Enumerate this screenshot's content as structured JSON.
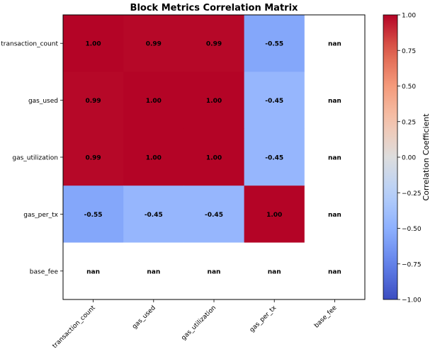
{
  "chart_data": {
    "type": "heatmap",
    "title": "Block Metrics Correlation Matrix",
    "rows": [
      "transaction_count",
      "gas_used",
      "gas_utilization",
      "gas_per_tx",
      "base_fee"
    ],
    "columns": [
      "transaction_count",
      "gas_used",
      "gas_utilization",
      "gas_per_tx",
      "base_fee"
    ],
    "values": [
      [
        1.0,
        0.99,
        0.99,
        -0.55,
        null
      ],
      [
        0.99,
        1.0,
        1.0,
        -0.45,
        null
      ],
      [
        0.99,
        1.0,
        1.0,
        -0.45,
        null
      ],
      [
        -0.55,
        -0.45,
        -0.45,
        1.0,
        null
      ],
      [
        null,
        null,
        null,
        null,
        null
      ]
    ],
    "cell_labels": [
      [
        "1.00",
        "0.99",
        "0.99",
        "-0.55",
        "nan"
      ],
      [
        "0.99",
        "1.00",
        "1.00",
        "-0.45",
        "nan"
      ],
      [
        "0.99",
        "1.00",
        "1.00",
        "-0.45",
        "nan"
      ],
      [
        "-0.55",
        "-0.45",
        "-0.45",
        "1.00",
        "nan"
      ],
      [
        "nan",
        "nan",
        "nan",
        "nan",
        "nan"
      ]
    ],
    "colormap": "coolwarm",
    "nan_color": "#ffffff",
    "vmin": -1,
    "vmax": 1,
    "colorbar": {
      "label": "Correlation Coefficient",
      "ticks": [
        1.0,
        0.75,
        0.5,
        0.25,
        0.0,
        -0.25,
        -0.5,
        -0.75,
        -1.0
      ],
      "tick_labels": [
        "1.00",
        "0.75",
        "0.50",
        "0.25",
        "0.00",
        "−0.25",
        "−0.50",
        "−0.75",
        "−1.00"
      ]
    },
    "legend": "colorbar-right",
    "grid": false
  }
}
